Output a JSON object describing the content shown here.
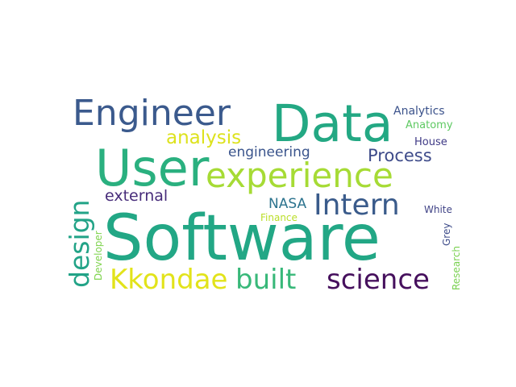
{
  "word_cloud": {
    "words": [
      {
        "text": "Software",
        "color": "#22a785"
      },
      {
        "text": "Data",
        "color": "#23a883"
      },
      {
        "text": "User",
        "color": "#2ab07f"
      },
      {
        "text": "Engineer",
        "color": "#3b5a8d"
      },
      {
        "text": "experience",
        "color": "#a6db35"
      },
      {
        "text": "Intern",
        "color": "#3a5b8b"
      },
      {
        "text": "science",
        "color": "#46105d"
      },
      {
        "text": "built",
        "color": "#38b879"
      },
      {
        "text": "Kkondae",
        "color": "#e2e31a"
      },
      {
        "text": "design",
        "color": "#22a387"
      },
      {
        "text": "analysis",
        "color": "#dde21d"
      },
      {
        "text": "Process",
        "color": "#3e4b8a"
      },
      {
        "text": "external",
        "color": "#472c7a"
      },
      {
        "text": "engineering",
        "color": "#3a548c"
      },
      {
        "text": "NASA",
        "color": "#2c738e"
      },
      {
        "text": "Analytics",
        "color": "#3b528b"
      },
      {
        "text": "Anatomy",
        "color": "#5ec962"
      },
      {
        "text": "House",
        "color": "#3f3a86"
      },
      {
        "text": "White",
        "color": "#414487"
      },
      {
        "text": "Finance",
        "color": "#bade28"
      },
      {
        "text": "Grey",
        "color": "#3e4c8a"
      },
      {
        "text": "Research",
        "color": "#7ad151"
      },
      {
        "text": "Developer",
        "color": "#7fd34e"
      }
    ]
  }
}
